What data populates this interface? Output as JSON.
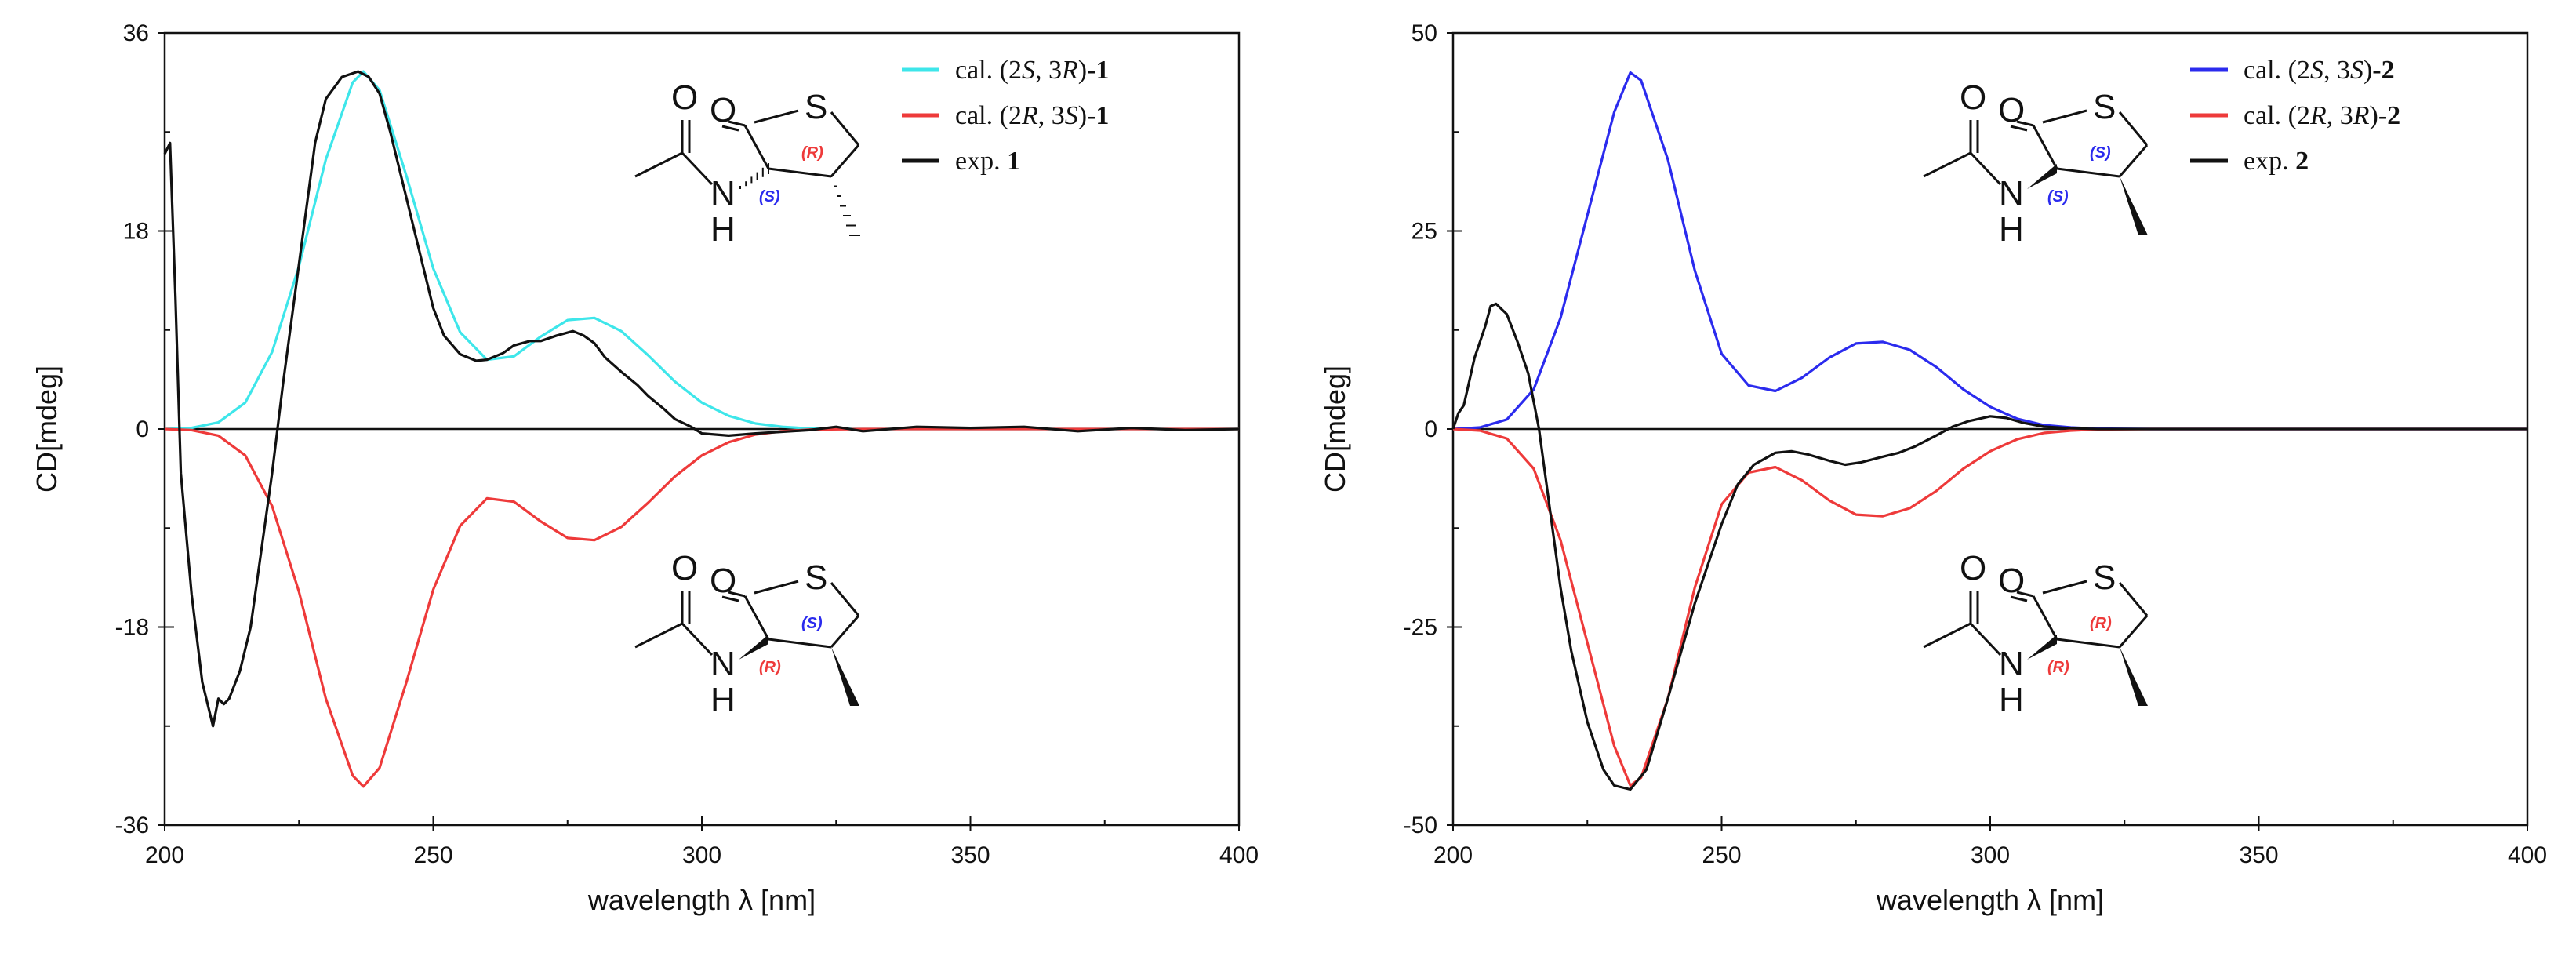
{
  "chart_data": [
    {
      "type": "line",
      "xlabel": "wavelength λ [nm]",
      "ylabel": "CD[mdeg]",
      "xlim": [
        200,
        400
      ],
      "ylim": [
        -36,
        36
      ],
      "x_ticks": [
        200,
        250,
        300,
        350,
        400
      ],
      "y_ticks": [
        36,
        18,
        0,
        -18,
        -36
      ],
      "y_tick_labels": [
        "36",
        "18",
        "0",
        "-18",
        "-36"
      ],
      "legend_position": "top-right",
      "legend": [
        {
          "pre": "cal. (2",
          "s1": "S",
          "mid": ", 3",
          "s2": "R",
          "post": ")-",
          "cmpd": "1"
        },
        {
          "pre": "cal. (2",
          "s1": "R",
          "mid": ", 3",
          "s2": "S",
          "post": ")-",
          "cmpd": "1"
        },
        {
          "pre": "exp. ",
          "s1": "",
          "mid": "",
          "s2": "",
          "post": "",
          "cmpd": "1"
        }
      ],
      "series": [
        {
          "name": "cal. (2S, 3R)-1",
          "color": "#3ee6ea",
          "x": [
            200,
            205,
            210,
            215,
            220,
            225,
            230,
            235,
            237,
            240,
            245,
            250,
            255,
            260,
            265,
            270,
            275,
            280,
            285,
            290,
            295,
            300,
            305,
            310,
            315,
            320,
            330,
            400
          ],
          "y": [
            0,
            0.1,
            0.6,
            2.4,
            7,
            14.8,
            24.5,
            31.5,
            32.5,
            30.8,
            23,
            14.6,
            8.8,
            6.3,
            6.6,
            8.4,
            9.9,
            10.1,
            8.9,
            6.7,
            4.3,
            2.4,
            1.2,
            0.5,
            0.2,
            0.05,
            0,
            0
          ]
        },
        {
          "name": "cal. (2R, 3S)-1",
          "color": "#ee3a3a",
          "x": [
            200,
            205,
            210,
            215,
            220,
            225,
            230,
            235,
            237,
            240,
            245,
            250,
            255,
            260,
            265,
            270,
            275,
            280,
            285,
            290,
            295,
            300,
            305,
            310,
            315,
            320,
            330,
            400
          ],
          "y": [
            0,
            -0.1,
            -0.6,
            -2.4,
            -7,
            -14.8,
            -24.5,
            -31.5,
            -32.5,
            -30.8,
            -23,
            -14.6,
            -8.8,
            -6.3,
            -6.6,
            -8.4,
            -9.9,
            -10.1,
            -8.9,
            -6.7,
            -4.3,
            -2.4,
            -1.2,
            -0.5,
            -0.2,
            -0.05,
            0,
            0
          ]
        },
        {
          "name": "exp. 1",
          "color": "#111111",
          "x": [
            200,
            201,
            202,
            203,
            205,
            207,
            209,
            210,
            211,
            212,
            214,
            216,
            218,
            220,
            222,
            225,
            228,
            230,
            233,
            236,
            238,
            240,
            242,
            245,
            248,
            250,
            252,
            255,
            258,
            260,
            263,
            265,
            268,
            270,
            273,
            276,
            278,
            280,
            282,
            285,
            288,
            290,
            293,
            295,
            298,
            300,
            305,
            310,
            320,
            325,
            330,
            340,
            350,
            360,
            370,
            380,
            390,
            400
          ],
          "y": [
            25,
            26,
            12,
            -4,
            -15,
            -23,
            -27,
            -24.5,
            -25,
            -24.5,
            -22,
            -18,
            -11,
            -4,
            4,
            15,
            26,
            30,
            32,
            32.5,
            32,
            30.5,
            27,
            21,
            15,
            11,
            8.5,
            6.8,
            6.2,
            6.3,
            6.9,
            7.6,
            8,
            8,
            8.5,
            8.9,
            8.5,
            7.8,
            6.5,
            5.2,
            4,
            3,
            1.8,
            0.9,
            0.2,
            -0.4,
            -0.6,
            -0.4,
            -0.1,
            0.2,
            -0.2,
            0.2,
            0.1,
            0.2,
            -0.2,
            0.1,
            -0.1,
            0
          ]
        }
      ],
      "structures": [
        {
          "position": "top",
          "label_a": "(S)",
          "label_b": "(R)"
        },
        {
          "position": "bottom",
          "label_a": "(R)",
          "label_b": "(S)"
        }
      ]
    },
    {
      "type": "line",
      "xlabel": "wavelength λ [nm]",
      "ylabel": "CD[mdeg]",
      "xlim": [
        200,
        400
      ],
      "ylim": [
        -50,
        50
      ],
      "x_ticks": [
        200,
        250,
        300,
        350,
        400
      ],
      "y_ticks": [
        50,
        25,
        0,
        -25,
        -50
      ],
      "y_tick_labels": [
        "50",
        "25",
        "0",
        "-25",
        "-50"
      ],
      "legend_position": "top-right",
      "legend": [
        {
          "pre": "cal. (2",
          "s1": "S",
          "mid": ", 3",
          "s2": "S",
          "post": ")-",
          "cmpd": "2"
        },
        {
          "pre": "cal. (2",
          "s1": "R",
          "mid": ", 3",
          "s2": "R",
          "post": ")-",
          "cmpd": "2"
        },
        {
          "pre": "exp. ",
          "s1": "",
          "mid": "",
          "s2": "",
          "post": "",
          "cmpd": "2"
        }
      ],
      "series": [
        {
          "name": "cal. (2S, 3S)-2",
          "color": "#2b2bee",
          "x": [
            200,
            205,
            210,
            215,
            220,
            225,
            230,
            233,
            235,
            240,
            245,
            250,
            255,
            260,
            265,
            270,
            275,
            280,
            285,
            290,
            295,
            300,
            305,
            310,
            315,
            320,
            330,
            400
          ],
          "y": [
            0,
            0.2,
            1.2,
            5,
            14,
            27,
            40,
            45,
            44,
            34,
            20,
            9.5,
            5.5,
            4.8,
            6.5,
            9,
            10.8,
            11,
            10,
            7.8,
            5,
            2.8,
            1.3,
            0.5,
            0.2,
            0.05,
            0,
            0
          ]
        },
        {
          "name": "cal. (2R, 3R)-2",
          "color": "#ee3a3a",
          "x": [
            200,
            205,
            210,
            215,
            220,
            225,
            230,
            233,
            235,
            240,
            245,
            250,
            255,
            260,
            265,
            270,
            275,
            280,
            285,
            290,
            295,
            300,
            305,
            310,
            315,
            320,
            330,
            400
          ],
          "y": [
            0,
            -0.2,
            -1.2,
            -5,
            -14,
            -27,
            -40,
            -45,
            -44,
            -34,
            -20,
            -9.5,
            -5.5,
            -4.8,
            -6.5,
            -9,
            -10.8,
            -11,
            -10,
            -7.8,
            -5,
            -2.8,
            -1.3,
            -0.5,
            -0.2,
            -0.05,
            0,
            0
          ]
        },
        {
          "name": "exp. 2",
          "color": "#111111",
          "x": [
            200,
            201,
            202,
            203,
            204,
            205,
            206,
            207,
            208,
            210,
            212,
            214,
            216,
            218,
            220,
            222,
            225,
            228,
            230,
            233,
            236,
            240,
            245,
            250,
            253,
            256,
            260,
            263,
            266,
            270,
            273,
            276,
            280,
            283,
            286,
            290,
            293,
            296,
            300,
            303,
            306,
            310,
            315,
            320,
            330,
            400
          ],
          "y": [
            0,
            2,
            3,
            6,
            9,
            11,
            13,
            15.5,
            15.8,
            14.5,
            11,
            7,
            0,
            -10,
            -20,
            -28,
            -37,
            -43,
            -45,
            -45.5,
            -43,
            -34,
            -22,
            -12,
            -7,
            -4.5,
            -3,
            -2.8,
            -3.2,
            -4,
            -4.5,
            -4.2,
            -3.5,
            -3,
            -2.2,
            -0.8,
            0.3,
            1,
            1.6,
            1.4,
            0.8,
            0.3,
            0.1,
            0,
            0,
            0
          ]
        }
      ],
      "structures": [
        {
          "position": "top",
          "label_a": "(S)",
          "label_b": "(S)"
        },
        {
          "position": "bottom",
          "label_a": "(R)",
          "label_b": "(R)"
        }
      ]
    }
  ]
}
